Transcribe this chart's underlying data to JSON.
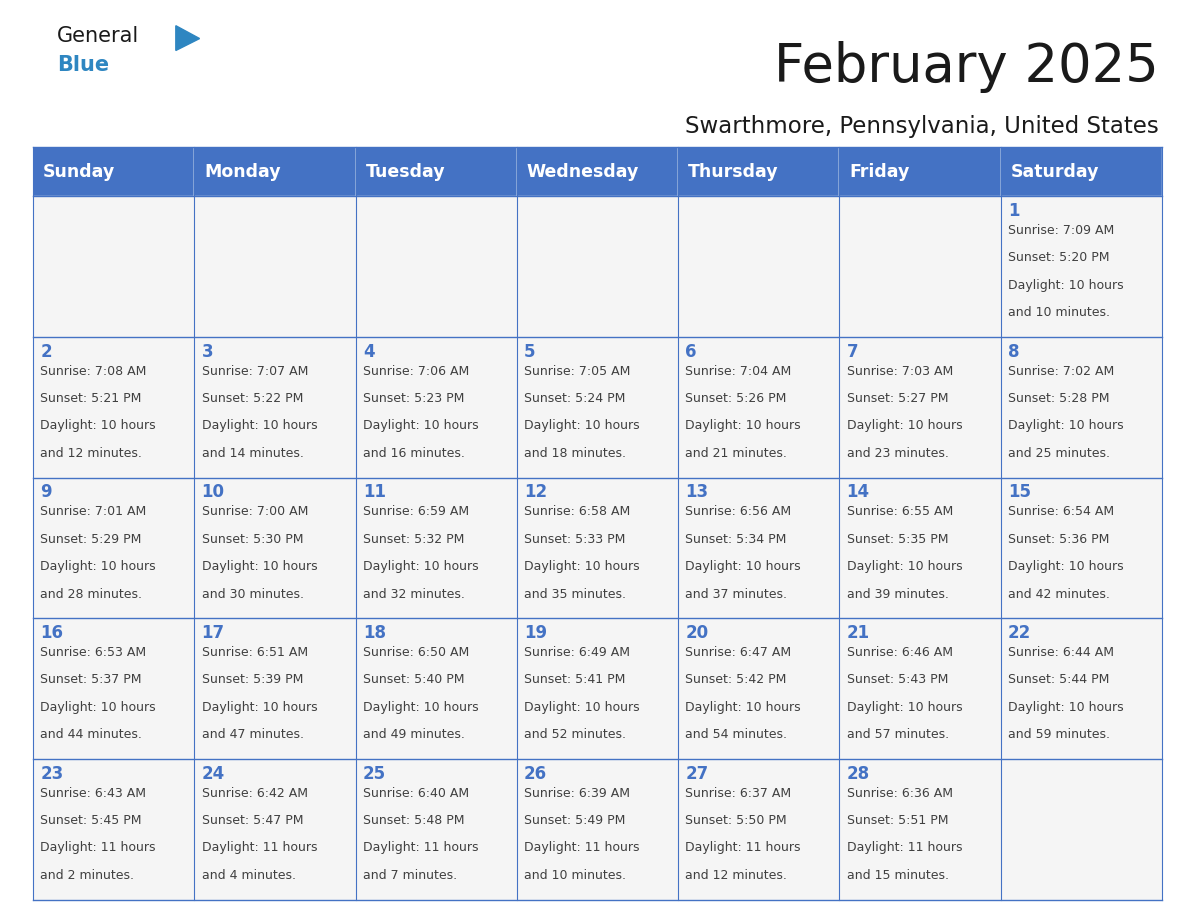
{
  "title": "February 2025",
  "subtitle": "Swarthmore, Pennsylvania, United States",
  "header_bg": "#4472C4",
  "header_text_color": "#FFFFFF",
  "cell_bg": "#F5F5F5",
  "day_number_color": "#4472C4",
  "text_color": "#404040",
  "border_color": "#4472C4",
  "days_of_week": [
    "Sunday",
    "Monday",
    "Tuesday",
    "Wednesday",
    "Thursday",
    "Friday",
    "Saturday"
  ],
  "calendar": [
    [
      null,
      null,
      null,
      null,
      null,
      null,
      1
    ],
    [
      2,
      3,
      4,
      5,
      6,
      7,
      8
    ],
    [
      9,
      10,
      11,
      12,
      13,
      14,
      15
    ],
    [
      16,
      17,
      18,
      19,
      20,
      21,
      22
    ],
    [
      23,
      24,
      25,
      26,
      27,
      28,
      null
    ]
  ],
  "cell_data": {
    "1": {
      "sunrise": "7:09 AM",
      "sunset": "5:20 PM",
      "daylight_h": "10 hours",
      "daylight_m": "10 minutes."
    },
    "2": {
      "sunrise": "7:08 AM",
      "sunset": "5:21 PM",
      "daylight_h": "10 hours",
      "daylight_m": "12 minutes."
    },
    "3": {
      "sunrise": "7:07 AM",
      "sunset": "5:22 PM",
      "daylight_h": "10 hours",
      "daylight_m": "14 minutes."
    },
    "4": {
      "sunrise": "7:06 AM",
      "sunset": "5:23 PM",
      "daylight_h": "10 hours",
      "daylight_m": "16 minutes."
    },
    "5": {
      "sunrise": "7:05 AM",
      "sunset": "5:24 PM",
      "daylight_h": "10 hours",
      "daylight_m": "18 minutes."
    },
    "6": {
      "sunrise": "7:04 AM",
      "sunset": "5:26 PM",
      "daylight_h": "10 hours",
      "daylight_m": "21 minutes."
    },
    "7": {
      "sunrise": "7:03 AM",
      "sunset": "5:27 PM",
      "daylight_h": "10 hours",
      "daylight_m": "23 minutes."
    },
    "8": {
      "sunrise": "7:02 AM",
      "sunset": "5:28 PM",
      "daylight_h": "10 hours",
      "daylight_m": "25 minutes."
    },
    "9": {
      "sunrise": "7:01 AM",
      "sunset": "5:29 PM",
      "daylight_h": "10 hours",
      "daylight_m": "28 minutes."
    },
    "10": {
      "sunrise": "7:00 AM",
      "sunset": "5:30 PM",
      "daylight_h": "10 hours",
      "daylight_m": "30 minutes."
    },
    "11": {
      "sunrise": "6:59 AM",
      "sunset": "5:32 PM",
      "daylight_h": "10 hours",
      "daylight_m": "32 minutes."
    },
    "12": {
      "sunrise": "6:58 AM",
      "sunset": "5:33 PM",
      "daylight_h": "10 hours",
      "daylight_m": "35 minutes."
    },
    "13": {
      "sunrise": "6:56 AM",
      "sunset": "5:34 PM",
      "daylight_h": "10 hours",
      "daylight_m": "37 minutes."
    },
    "14": {
      "sunrise": "6:55 AM",
      "sunset": "5:35 PM",
      "daylight_h": "10 hours",
      "daylight_m": "39 minutes."
    },
    "15": {
      "sunrise": "6:54 AM",
      "sunset": "5:36 PM",
      "daylight_h": "10 hours",
      "daylight_m": "42 minutes."
    },
    "16": {
      "sunrise": "6:53 AM",
      "sunset": "5:37 PM",
      "daylight_h": "10 hours",
      "daylight_m": "44 minutes."
    },
    "17": {
      "sunrise": "6:51 AM",
      "sunset": "5:39 PM",
      "daylight_h": "10 hours",
      "daylight_m": "47 minutes."
    },
    "18": {
      "sunrise": "6:50 AM",
      "sunset": "5:40 PM",
      "daylight_h": "10 hours",
      "daylight_m": "49 minutes."
    },
    "19": {
      "sunrise": "6:49 AM",
      "sunset": "5:41 PM",
      "daylight_h": "10 hours",
      "daylight_m": "52 minutes."
    },
    "20": {
      "sunrise": "6:47 AM",
      "sunset": "5:42 PM",
      "daylight_h": "10 hours",
      "daylight_m": "54 minutes."
    },
    "21": {
      "sunrise": "6:46 AM",
      "sunset": "5:43 PM",
      "daylight_h": "10 hours",
      "daylight_m": "57 minutes."
    },
    "22": {
      "sunrise": "6:44 AM",
      "sunset": "5:44 PM",
      "daylight_h": "10 hours",
      "daylight_m": "59 minutes."
    },
    "23": {
      "sunrise": "6:43 AM",
      "sunset": "5:45 PM",
      "daylight_h": "11 hours",
      "daylight_m": "2 minutes."
    },
    "24": {
      "sunrise": "6:42 AM",
      "sunset": "5:47 PM",
      "daylight_h": "11 hours",
      "daylight_m": "4 minutes."
    },
    "25": {
      "sunrise": "6:40 AM",
      "sunset": "5:48 PM",
      "daylight_h": "11 hours",
      "daylight_m": "7 minutes."
    },
    "26": {
      "sunrise": "6:39 AM",
      "sunset": "5:49 PM",
      "daylight_h": "11 hours",
      "daylight_m": "10 minutes."
    },
    "27": {
      "sunrise": "6:37 AM",
      "sunset": "5:50 PM",
      "daylight_h": "11 hours",
      "daylight_m": "12 minutes."
    },
    "28": {
      "sunrise": "6:36 AM",
      "sunset": "5:51 PM",
      "daylight_h": "11 hours",
      "daylight_m": "15 minutes."
    }
  },
  "logo_general_color": "#1a1a1a",
  "logo_blue_color": "#2E86C1",
  "logo_triangle_color": "#2E86C1"
}
